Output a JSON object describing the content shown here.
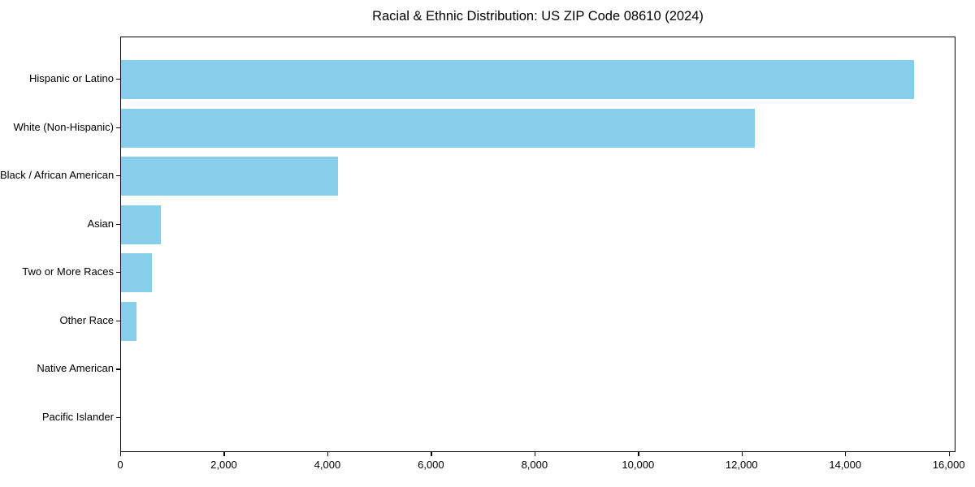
{
  "title": "Racial & Ethnic Distribution: US ZIP Code 08610 (2024)",
  "colors": {
    "bar": "#87CEEB",
    "axis": "#000000",
    "background": "#FFFFFF",
    "text": "#000000"
  },
  "chart_data": {
    "type": "bar",
    "orientation": "horizontal",
    "title": "Racial & Ethnic Distribution: US ZIP Code 08610 (2024)",
    "categories": [
      "Hispanic or Latino",
      "White (Non-Hispanic)",
      "Black / African American",
      "Asian",
      "Two or More Races",
      "Other Race",
      "Native American",
      "Pacific Islander"
    ],
    "values": [
      15350,
      12270,
      4190,
      770,
      600,
      300,
      0,
      0
    ],
    "xlabel": "",
    "ylabel": "",
    "xlim": [
      0,
      16130
    ],
    "x_ticks": [
      0,
      2000,
      4000,
      6000,
      8000,
      10000,
      12000,
      14000,
      16000
    ],
    "x_tick_labels": [
      "0",
      "2,000",
      "4,000",
      "6,000",
      "8,000",
      "10,000",
      "12,000",
      "14,000",
      "16,000"
    ],
    "grid": false,
    "legend": null,
    "bar_color": "#87CEEB"
  }
}
